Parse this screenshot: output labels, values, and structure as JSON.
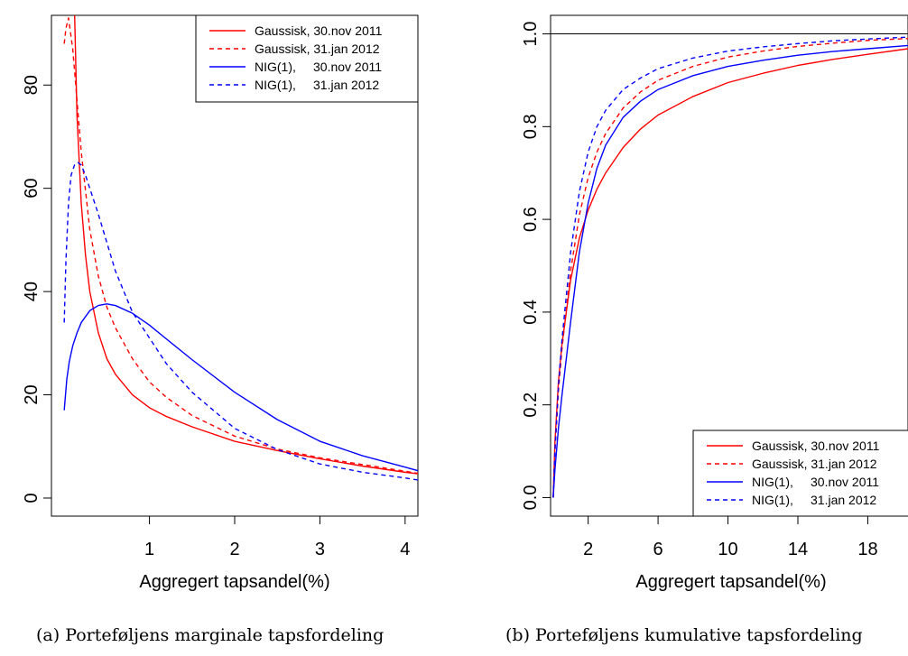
{
  "charts": [
    {
      "caption": "(a) Porteføljens marginale tapsfordeling",
      "chart_data": {
        "type": "line",
        "xlabel": "Aggregert tapsandel(%)",
        "ylabel": "",
        "xlim": [
          -0.15,
          4.15
        ],
        "ylim": [
          -3.5,
          93.5
        ],
        "xticks": [
          1,
          2,
          3,
          4
        ],
        "yticks": [
          0,
          20,
          40,
          60,
          80
        ],
        "legend_position": "top-right",
        "series": [
          {
            "name": "Gaussisk, 30.nov 2011",
            "color": "#ff0000",
            "dash": "solid",
            "x": [
              0.12,
              0.15,
              0.2,
              0.25,
              0.3,
              0.4,
              0.5,
              0.6,
              0.8,
              1.0,
              1.2,
              1.5,
              2.0,
              2.5,
              3.0,
              3.5,
              4.0,
              4.15
            ],
            "y": [
              95,
              74,
              57,
              47,
              40,
              32,
              27,
              24,
              20,
              17.5,
              15.8,
              13.8,
              11.0,
              9.2,
              7.6,
              6.2,
              5.0,
              4.7
            ]
          },
          {
            "name": "Gaussisk, 31.jan 2012",
            "color": "#ff0000",
            "dash": "dashed",
            "x": [
              0.0,
              0.02,
              0.05,
              0.1,
              0.15,
              0.2,
              0.3,
              0.4,
              0.5,
              0.6,
              0.8,
              1.0,
              1.2,
              1.5,
              2.0,
              2.5,
              3.0,
              3.5,
              4.0,
              4.15
            ],
            "y": [
              88,
              91,
              93,
              87,
              77,
              67,
              52,
              43,
              37,
              33,
              27,
              22.5,
              19.5,
              16,
              12,
              9.5,
              7.8,
              6.5,
              5.2,
              4.8
            ]
          },
          {
            "name": "NIG(1),     30.nov 2011",
            "color": "#0000ff",
            "dash": "solid",
            "x": [
              0.0,
              0.03,
              0.06,
              0.1,
              0.15,
              0.2,
              0.3,
              0.4,
              0.5,
              0.6,
              0.8,
              1.0,
              1.2,
              1.5,
              2.0,
              2.5,
              3.0,
              3.5,
              4.0,
              4.15
            ],
            "y": [
              17,
              23,
              26.5,
              29.5,
              32,
              34,
              36.3,
              37.3,
              37.6,
              37.3,
              35.8,
              33.5,
              30.8,
              26.8,
              20.5,
              15.2,
              11.0,
              8.2,
              6.0,
              5.3
            ]
          },
          {
            "name": "NIG(1),     31.jan 2012",
            "color": "#0000ff",
            "dash": "dashed",
            "x": [
              0.0,
              0.02,
              0.05,
              0.08,
              0.12,
              0.16,
              0.2,
              0.25,
              0.3,
              0.4,
              0.5,
              0.6,
              0.8,
              1.0,
              1.2,
              1.5,
              2.0,
              2.5,
              3.0,
              3.5,
              4.0,
              4.15
            ],
            "y": [
              34,
              46,
              57,
              62.5,
              64.5,
              65,
              64.5,
              62.5,
              60,
              55,
              49.5,
              44,
              36,
              31,
              26,
              20.5,
              13.5,
              9.4,
              6.6,
              5.0,
              3.9,
              3.5
            ]
          }
        ]
      }
    },
    {
      "caption": "(b) Porteføljens kumulative tapsfordeling",
      "chart_data": {
        "type": "line",
        "xlabel": "Aggregert tapsandel(%)",
        "ylabel": "",
        "xlim": [
          -0.15,
          20.3
        ],
        "ylim": [
          -0.04,
          1.04
        ],
        "xticks": [
          2,
          6,
          10,
          14,
          18
        ],
        "yticks": [
          0.0,
          0.2,
          0.4,
          0.6,
          0.8,
          1.0
        ],
        "ytick_labels": [
          "0.0",
          "0.2",
          "0.4",
          "0.6",
          "0.8",
          "1.0"
        ],
        "hline": 1.0,
        "legend_position": "bottom-right",
        "series": [
          {
            "name": "Gaussisk, 30.nov 2011",
            "color": "#ff0000",
            "dash": "solid",
            "x": [
              0.0,
              0.1,
              0.3,
              0.5,
              1.0,
              1.5,
              2.0,
              2.5,
              3.0,
              4.0,
              5.0,
              6.0,
              8.0,
              10.0,
              12.0,
              14.0,
              16.0,
              18.0,
              20.3
            ],
            "y": [
              0.0,
              0.12,
              0.25,
              0.33,
              0.47,
              0.56,
              0.62,
              0.665,
              0.7,
              0.755,
              0.795,
              0.825,
              0.865,
              0.895,
              0.915,
              0.932,
              0.945,
              0.956,
              0.968
            ]
          },
          {
            "name": "Gaussisk, 31.jan 2012",
            "color": "#ff0000",
            "dash": "dashed",
            "x": [
              0.0,
              0.1,
              0.3,
              0.5,
              1.0,
              1.5,
              2.0,
              2.5,
              3.0,
              4.0,
              5.0,
              6.0,
              8.0,
              10.0,
              12.0,
              14.0,
              16.0,
              18.0,
              20.3
            ],
            "y": [
              0.0,
              0.1,
              0.23,
              0.32,
              0.49,
              0.61,
              0.69,
              0.745,
              0.785,
              0.84,
              0.875,
              0.9,
              0.93,
              0.95,
              0.963,
              0.973,
              0.98,
              0.986,
              0.99
            ]
          },
          {
            "name": "NIG(1),     30.nov 2011",
            "color": "#0000ff",
            "dash": "solid",
            "x": [
              0.0,
              0.1,
              0.3,
              0.5,
              1.0,
              1.5,
              2.0,
              2.5,
              3.0,
              4.0,
              5.0,
              6.0,
              8.0,
              10.0,
              12.0,
              14.0,
              16.0,
              18.0,
              20.3
            ],
            "y": [
              0.0,
              0.06,
              0.15,
              0.22,
              0.38,
              0.53,
              0.635,
              0.71,
              0.76,
              0.82,
              0.855,
              0.88,
              0.91,
              0.93,
              0.943,
              0.954,
              0.962,
              0.968,
              0.975
            ]
          },
          {
            "name": "NIG(1),     31.jan 2012",
            "color": "#0000ff",
            "dash": "dashed",
            "x": [
              0.0,
              0.1,
              0.3,
              0.5,
              1.0,
              1.5,
              2.0,
              2.5,
              3.0,
              4.0,
              5.0,
              6.0,
              8.0,
              10.0,
              12.0,
              14.0,
              16.0,
              18.0,
              20.3
            ],
            "y": [
              0.0,
              0.1,
              0.24,
              0.34,
              0.53,
              0.66,
              0.745,
              0.8,
              0.835,
              0.88,
              0.905,
              0.925,
              0.948,
              0.963,
              0.972,
              0.979,
              0.985,
              0.989,
              0.993
            ]
          }
        ]
      }
    }
  ]
}
